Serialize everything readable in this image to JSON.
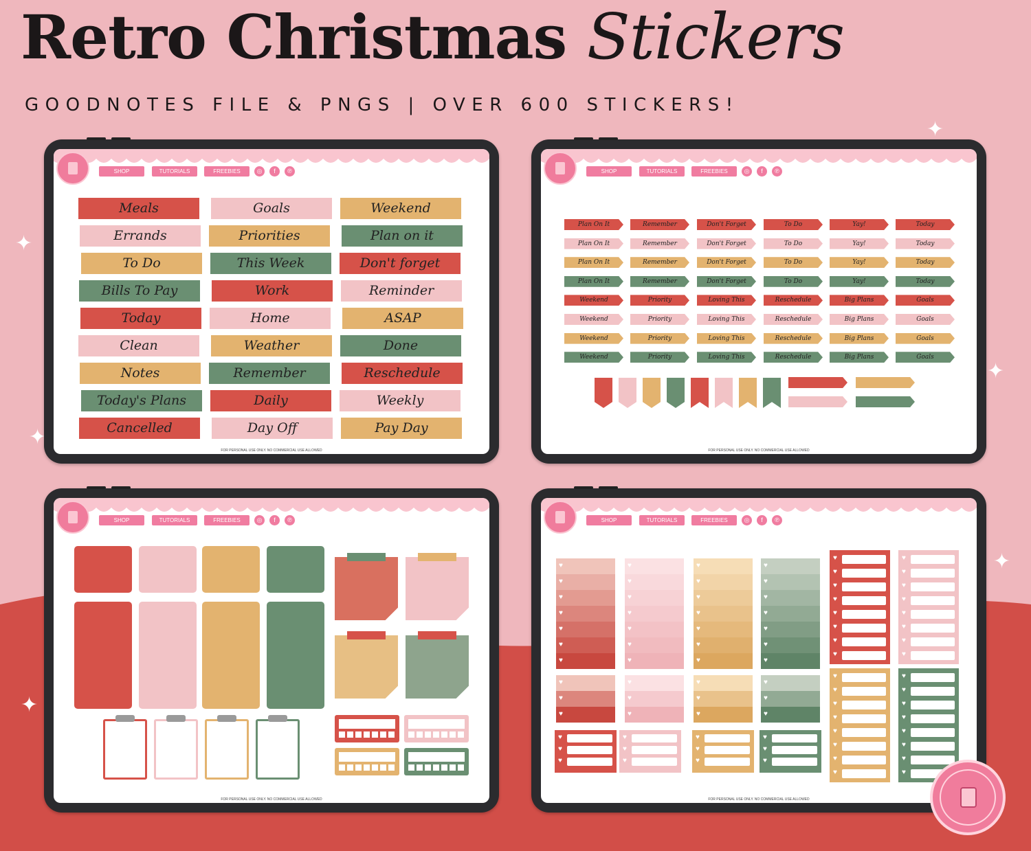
{
  "header": {
    "title_main": "Retro Christmas",
    "title_script": "Stickers",
    "subtitle": "GOODNOTES FILE & PNGS | OVER 600 STICKERS!"
  },
  "colors": {
    "background_pink": "#efb7bd",
    "background_red": "#d24e48",
    "red": "#d65249",
    "pink": "#f2c3c6",
    "mustard": "#e3b36f",
    "green": "#6a8f72",
    "nav_pink": "#f07ca0"
  },
  "nav": {
    "shop": "SHOP",
    "tutorials": "TUTORIALS",
    "freebies": "FREEBIES"
  },
  "social_icons": [
    "instagram-icon",
    "facebook-icon",
    "pinterest-icon"
  ],
  "footer_note": "FOR PERSONAL USE ONLY. NO COMMERCIAL USE ALLOWED",
  "sheet1_labels": [
    [
      "Meals",
      "Goals",
      "Weekend"
    ],
    [
      "Errands",
      "Priorities",
      "Plan on it"
    ],
    [
      "To Do",
      "This Week",
      "Don't forget"
    ],
    [
      "Bills To Pay",
      "Work",
      "Reminder"
    ],
    [
      "Today",
      "Home",
      "ASAP"
    ],
    [
      "Clean",
      "Weather",
      "Done"
    ],
    [
      "Notes",
      "Remember",
      "Reschedule"
    ],
    [
      "Today's Plans",
      "Daily",
      "Weekly"
    ],
    [
      "Cancelled",
      "Day Off",
      "Pay Day"
    ]
  ],
  "sheet2_flag_labels": [
    [
      "Plan On It",
      "Remember",
      "Don't Forget",
      "To Do",
      "Yay!",
      "Today"
    ],
    [
      "Weekend",
      "Priority",
      "Loving This",
      "Reschedule",
      "Big Plans",
      "Goals"
    ]
  ]
}
